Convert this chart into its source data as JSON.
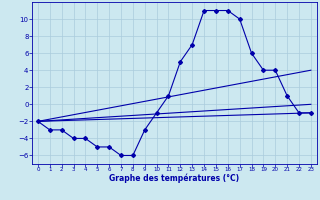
{
  "title": "",
  "xlabel": "Graphe des températures (°C)",
  "ylabel": "",
  "background_color": "#cce8f0",
  "grid_color": "#aaccdd",
  "line_color": "#0000aa",
  "xlim": [
    -0.5,
    23.5
  ],
  "ylim": [
    -7,
    12
  ],
  "xticks": [
    0,
    1,
    2,
    3,
    4,
    5,
    6,
    7,
    8,
    9,
    10,
    11,
    12,
    13,
    14,
    15,
    16,
    17,
    18,
    19,
    20,
    21,
    22,
    23
  ],
  "yticks": [
    -6,
    -4,
    -2,
    0,
    2,
    4,
    6,
    8,
    10
  ],
  "series": [
    {
      "x": [
        0,
        1,
        2,
        3,
        4,
        5,
        6,
        7,
        8,
        9,
        10,
        11,
        12,
        13,
        14,
        15,
        16,
        17,
        18,
        19,
        20,
        21,
        22,
        23
      ],
      "y": [
        -2,
        -3,
        -3,
        -4,
        -4,
        -5,
        -5,
        -6,
        -6,
        -3,
        -1,
        1,
        5,
        7,
        11,
        11,
        11,
        10,
        6,
        4,
        4,
        1,
        -1,
        -1
      ],
      "marker": "D",
      "markersize": 2.0,
      "linewidth": 0.8
    },
    {
      "x": [
        0,
        23
      ],
      "y": [
        -2,
        -1
      ],
      "marker": null,
      "markersize": 0,
      "linewidth": 0.8
    },
    {
      "x": [
        0,
        23
      ],
      "y": [
        -2,
        0
      ],
      "marker": null,
      "markersize": 0,
      "linewidth": 0.8
    },
    {
      "x": [
        0,
        23
      ],
      "y": [
        -2,
        4
      ],
      "marker": null,
      "markersize": 0,
      "linewidth": 0.8
    }
  ]
}
